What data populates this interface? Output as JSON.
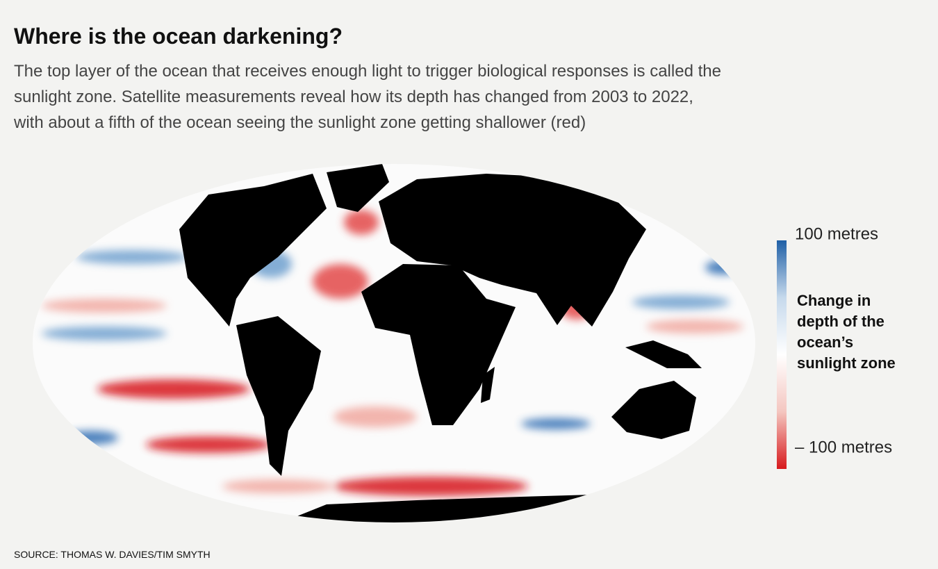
{
  "title": "Where is the ocean darkening?",
  "subtitle": "The top layer of the ocean that receives enough light to trigger biological responses is called the sunlight zone. Satellite measurements reveal how its depth has changed from 2003 to 2022, with about a fifth of the ocean seeing the sunlight zone getting shallower (red)",
  "legend": {
    "title": "Change in depth of the ocean’s sunlight zone",
    "lim": [
      -100,
      100
    ],
    "ticks": [
      {
        "value": 100,
        "label": "100 metres"
      },
      {
        "value": -100,
        "label": "– 100 metres"
      }
    ],
    "colors": [
      "#d7191c",
      "#f4c6c0",
      "#ffffff",
      "#c6d9ec",
      "#1f5fa6"
    ]
  },
  "source": "SOURCE: THOMAS W. DAVIES/TIM SMYTH"
}
